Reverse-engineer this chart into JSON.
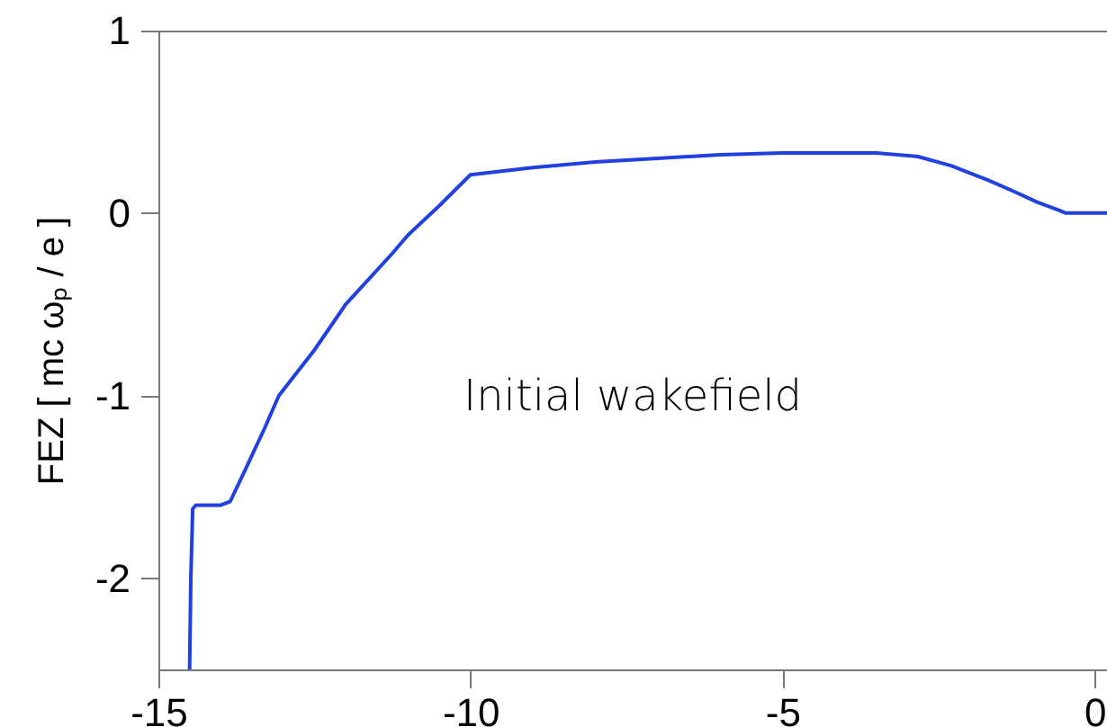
{
  "chart_data": {
    "type": "line",
    "ylabel": "FEZ [ mc ωₚ / e ]",
    "annotations": [
      "Initial wakefield"
    ],
    "series": [
      {
        "color": "#2040e0",
        "x": [
          -14.5,
          -14.48,
          -14.45,
          -14.4,
          -14.2,
          -14.0,
          -13.85,
          -13.6,
          -13.3,
          -13.07,
          -12.5,
          -12.0,
          -11.25,
          -11.0,
          -10.5,
          -10.0,
          -9.0,
          -8.0,
          -7.0,
          -6.0,
          -5.0,
          -4.3,
          -3.5,
          -2.83,
          -2.3,
          -1.7,
          -1.3,
          -0.92,
          -0.6,
          -0.46,
          0.2
        ],
        "values": [
          -2.5,
          -2.0,
          -1.62,
          -1.6,
          -1.6,
          -1.6,
          -1.58,
          -1.4,
          -1.18,
          -1.0,
          -0.75,
          -0.5,
          -0.22,
          -0.12,
          0.04,
          0.21,
          0.25,
          0.28,
          0.3,
          0.32,
          0.33,
          0.33,
          0.33,
          0.31,
          0.26,
          0.18,
          0.12,
          0.06,
          0.02,
          0.0,
          0.0
        ]
      }
    ],
    "xlim": [
      -15,
      0.2
    ],
    "ylim": [
      -2.5,
      1
    ],
    "xticks": [
      -15,
      -10,
      -5,
      0
    ],
    "yticks": [
      -2,
      -1,
      0,
      1
    ],
    "grid": false,
    "line_style": "solid",
    "marker": "none"
  }
}
